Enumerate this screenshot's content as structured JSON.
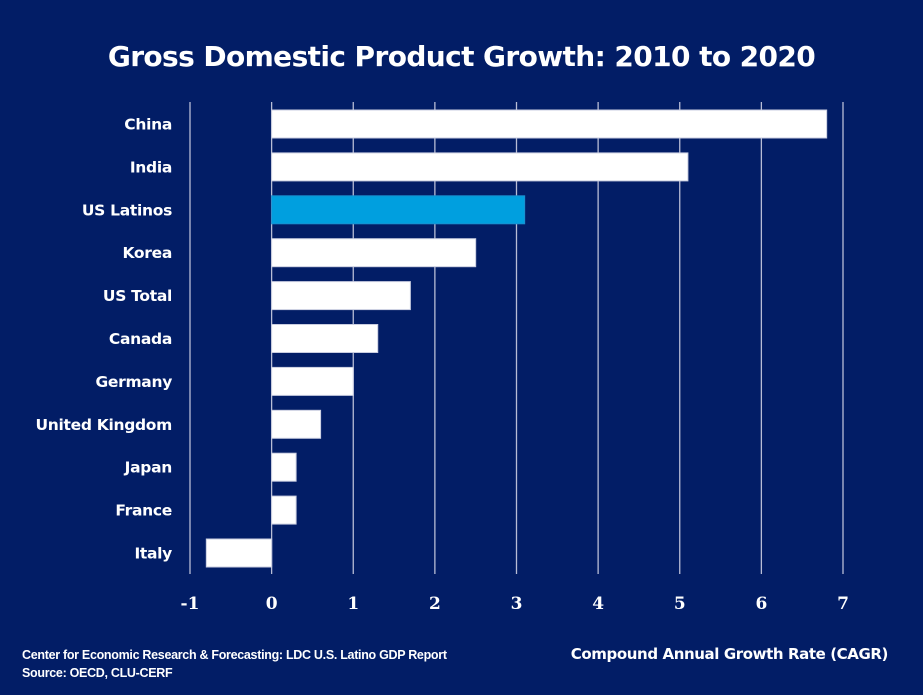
{
  "chart_data": {
    "type": "bar",
    "orientation": "horizontal",
    "title": "Gross Domestic Product Growth: 2010 to 2020",
    "xlabel": "Compound Annual Growth Rate (CAGR)",
    "ylabel": "",
    "categories": [
      "China",
      "India",
      "US Latinos",
      "Korea",
      "US Total",
      "Canada",
      "Germany",
      "United Kingdom",
      "Japan",
      "France",
      "Italy"
    ],
    "values": [
      6.8,
      5.1,
      3.1,
      2.5,
      1.7,
      1.3,
      1.0,
      0.6,
      0.3,
      0.3,
      -0.8
    ],
    "highlight": "US Latinos",
    "xlim": [
      -1,
      7
    ],
    "xticks": [
      -1,
      0,
      1,
      2,
      3,
      4,
      5,
      6,
      7
    ],
    "xtick_labels": [
      "-1",
      "0",
      "1",
      "2",
      "3",
      "4",
      "5",
      "6",
      "7"
    ],
    "grid": true,
    "legend": "none",
    "colors": {
      "background": "#021d66",
      "bar": "#ffffff",
      "highlight_bar": "#009fdf",
      "grid": "#b8bdd6",
      "text": "#ffffff"
    }
  },
  "footer": {
    "source_line1": "Center for Economic Research & Forecasting: LDC U.S.  Latino GDP Report",
    "source_line2": "Source: OECD, CLU-CERF"
  }
}
